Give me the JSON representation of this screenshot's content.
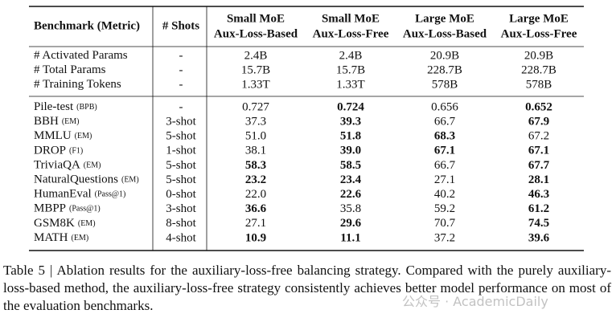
{
  "table": {
    "header": {
      "benchmark": "Benchmark (Metric)",
      "shots": "# Shots",
      "columns": [
        {
          "line1": "Small MoE",
          "line2": "Aux-Loss-Based"
        },
        {
          "line1": "Small MoE",
          "line2": "Aux-Loss-Free"
        },
        {
          "line1": "Large MoE",
          "line2": "Aux-Loss-Based"
        },
        {
          "line1": "Large MoE",
          "line2": "Aux-Loss-Free"
        }
      ]
    },
    "groups": [
      {
        "rows": [
          {
            "name": "# Activated Params",
            "shots": "-",
            "values": [
              "2.4B",
              "2.4B",
              "20.9B",
              "20.9B"
            ],
            "bold": [
              false,
              false,
              false,
              false
            ]
          },
          {
            "name": "# Total Params",
            "shots": "-",
            "values": [
              "15.7B",
              "15.7B",
              "228.7B",
              "228.7B"
            ],
            "bold": [
              false,
              false,
              false,
              false
            ]
          },
          {
            "name": "# Training Tokens",
            "shots": "-",
            "values": [
              "1.33T",
              "1.33T",
              "578B",
              "578B"
            ],
            "bold": [
              false,
              false,
              false,
              false
            ]
          }
        ]
      },
      {
        "rows": [
          {
            "name": "Pile-test",
            "metric": "(BPB)",
            "shots": "-",
            "values": [
              "0.727",
              "0.724",
              "0.656",
              "0.652"
            ],
            "bold": [
              false,
              true,
              false,
              true
            ]
          },
          {
            "name": "BBH",
            "metric": "(EM)",
            "shots": "3-shot",
            "values": [
              "37.3",
              "39.3",
              "66.7",
              "67.9"
            ],
            "bold": [
              false,
              true,
              false,
              true
            ]
          },
          {
            "name": "MMLU",
            "metric": "(EM)",
            "shots": "5-shot",
            "values": [
              "51.0",
              "51.8",
              "68.3",
              "67.2"
            ],
            "bold": [
              false,
              true,
              true,
              false
            ]
          },
          {
            "name": "DROP",
            "metric": "(F1)",
            "shots": "1-shot",
            "values": [
              "38.1",
              "39.0",
              "67.1",
              "67.1"
            ],
            "bold": [
              false,
              true,
              true,
              true
            ]
          },
          {
            "name": "TriviaQA",
            "metric": "(EM)",
            "shots": "5-shot",
            "values": [
              "58.3",
              "58.5",
              "66.7",
              "67.7"
            ],
            "bold": [
              true,
              true,
              false,
              true
            ]
          },
          {
            "name": "NaturalQuestions",
            "metric": "(EM)",
            "shots": "5-shot",
            "values": [
              "23.2",
              "23.4",
              "27.1",
              "28.1"
            ],
            "bold": [
              true,
              true,
              false,
              true
            ]
          },
          {
            "name": "HumanEval",
            "metric": "(Pass@1)",
            "shots": "0-shot",
            "values": [
              "22.0",
              "22.6",
              "40.2",
              "46.3"
            ],
            "bold": [
              false,
              true,
              false,
              true
            ]
          },
          {
            "name": "MBPP",
            "metric": "(Pass@1)",
            "shots": "3-shot",
            "values": [
              "36.6",
              "35.8",
              "59.2",
              "61.2"
            ],
            "bold": [
              true,
              false,
              false,
              true
            ]
          },
          {
            "name": "GSM8K",
            "metric": "(EM)",
            "shots": "8-shot",
            "values": [
              "27.1",
              "29.6",
              "70.7",
              "74.5"
            ],
            "bold": [
              false,
              true,
              false,
              true
            ]
          },
          {
            "name": "MATH",
            "metric": "(EM)",
            "shots": "4-shot",
            "values": [
              "10.9",
              "11.1",
              "37.2",
              "39.6"
            ],
            "bold": [
              true,
              true,
              false,
              true
            ]
          }
        ]
      }
    ]
  },
  "caption": "Table 5 | Ablation results for the auxiliary-loss-free balancing strategy. Compared with the purely auxiliary-loss-based method, the auxiliary-loss-free strategy consistently achieves better model performance on most of the evaluation benchmarks.",
  "watermark": "公众号 · AcademicDaily"
}
